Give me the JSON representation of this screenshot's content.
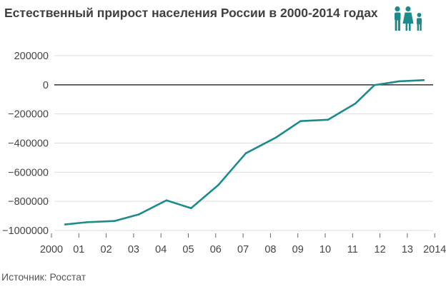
{
  "chart_data": {
    "type": "line",
    "title": "Естественный прирост населения России в 2000-2014 годах",
    "xlabel": "",
    "ylabel": "",
    "x": [
      2000,
      2001,
      2002,
      2003,
      2004,
      2005,
      2006,
      2007,
      2008,
      2009,
      2010,
      2011,
      2012,
      2013,
      2014
    ],
    "x_tick_labels": [
      "2000",
      "01",
      "02",
      "03",
      "04",
      "05",
      "06",
      "07",
      "08",
      "09",
      "10",
      "11",
      "12",
      "13",
      "2014"
    ],
    "y_ticks": [
      200000,
      0,
      -200000,
      -400000,
      -600000,
      -800000,
      -1000000
    ],
    "ylim": [
      -1000000,
      200000
    ],
    "grid": true,
    "series": [
      {
        "x": [
          2000.5,
          2001.3,
          2002.3,
          2003.2,
          2004.2,
          2005.1,
          2006.1,
          2007.1,
          2008.2,
          2009.1,
          2010.1,
          2011.1,
          2011.8,
          2012.7,
          2013.6
        ],
        "values": [
          -958500,
          -943000,
          -935000,
          -889000,
          -793000,
          -847000,
          -687000,
          -470000,
          -362000,
          -249000,
          -240000,
          -129000,
          -2000,
          24000,
          32000
        ]
      }
    ],
    "colors": {
      "line": "#1b8b8b",
      "zero_line": "#333333",
      "grid": "#dddddd"
    }
  },
  "source_text": "Источник: Росстат",
  "icon": "family-icon"
}
